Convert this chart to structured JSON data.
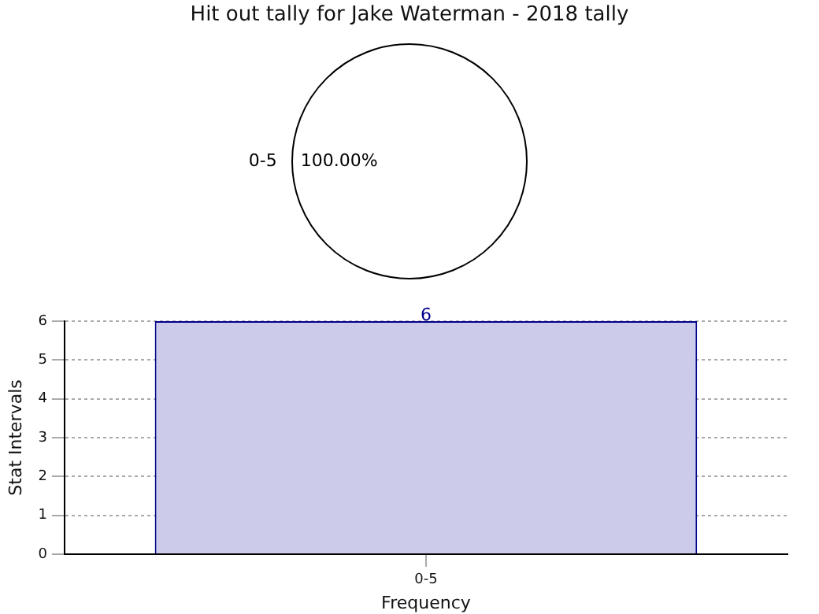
{
  "chart_data": [
    {
      "type": "pie",
      "title": "Hit out tally for Jake Waterman - 2018 tally",
      "categories": [
        "0-5"
      ],
      "values": [
        100
      ],
      "colors": [
        "#ffffff"
      ],
      "value_labels": [
        "100.00%"
      ]
    },
    {
      "type": "bar",
      "categories": [
        "0-5"
      ],
      "values": [
        6
      ],
      "color": "#ccccea",
      "ylim": [
        0,
        6
      ],
      "yticks": [
        0,
        1,
        2,
        3,
        4,
        5,
        6
      ],
      "ylabel": "Stat Intervals",
      "xlabel": "Frequency",
      "grid": true,
      "data_labels": true
    }
  ]
}
